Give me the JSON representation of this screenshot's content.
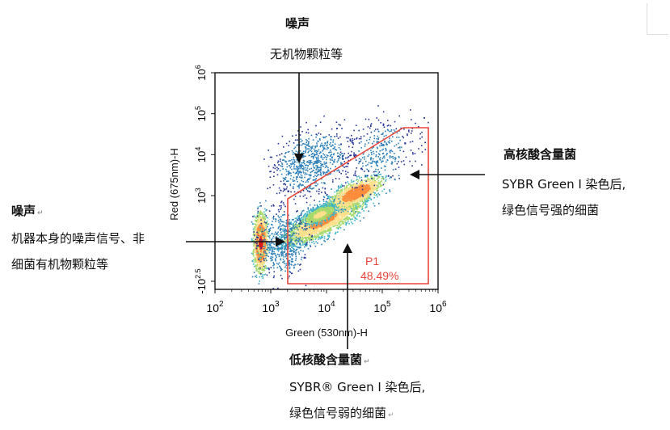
{
  "chart_data": {
    "type": "scatter",
    "title": "",
    "xlabel": "Green (530nm)-H",
    "ylabel": "Red (675nm)-H",
    "x_scale": "log",
    "y_scale": "log",
    "xlim": [
      100,
      1000000
    ],
    "ylim": [
      -200,
      1000000
    ],
    "x_ticks": [
      {
        "value": 100,
        "base": "10",
        "exp": "2"
      },
      {
        "value": 1000,
        "base": "10",
        "exp": "3"
      },
      {
        "value": 10000,
        "base": "10",
        "exp": "4"
      },
      {
        "value": 100000,
        "base": "10",
        "exp": "5"
      },
      {
        "value": 1000000,
        "base": "10",
        "exp": "6"
      }
    ],
    "y_ticks": [
      {
        "value": 1000000,
        "base": "10",
        "exp": "6"
      },
      {
        "value": 100000,
        "base": "10",
        "exp": "5"
      },
      {
        "value": 10000,
        "base": "10",
        "exp": "4"
      },
      {
        "value": 1000,
        "base": "10",
        "exp": "3"
      },
      {
        "value": -316,
        "base": "-10",
        "exp": "2.5"
      }
    ],
    "gate": {
      "name": "P1",
      "percent": "48.49%",
      "color": "#e8473a"
    },
    "grid": false,
    "legend": "none"
  },
  "annotations": {
    "noise_top": {
      "title": "噪声",
      "text": "无机物颗粒等"
    },
    "high_na": {
      "title": "高核酸含量菌",
      "line1": "SYBR Green I 染色后,",
      "line2": "绿色信号强的细菌"
    },
    "noise_left": {
      "title": "噪声",
      "line1": "机器本身的噪声信号、非",
      "line2": "细菌有机物颗粒等"
    },
    "low_na": {
      "title": "低核酸含量菌",
      "line1": "SYBR® Green I 染色后,",
      "line2": "绿色信号弱的细菌"
    }
  }
}
